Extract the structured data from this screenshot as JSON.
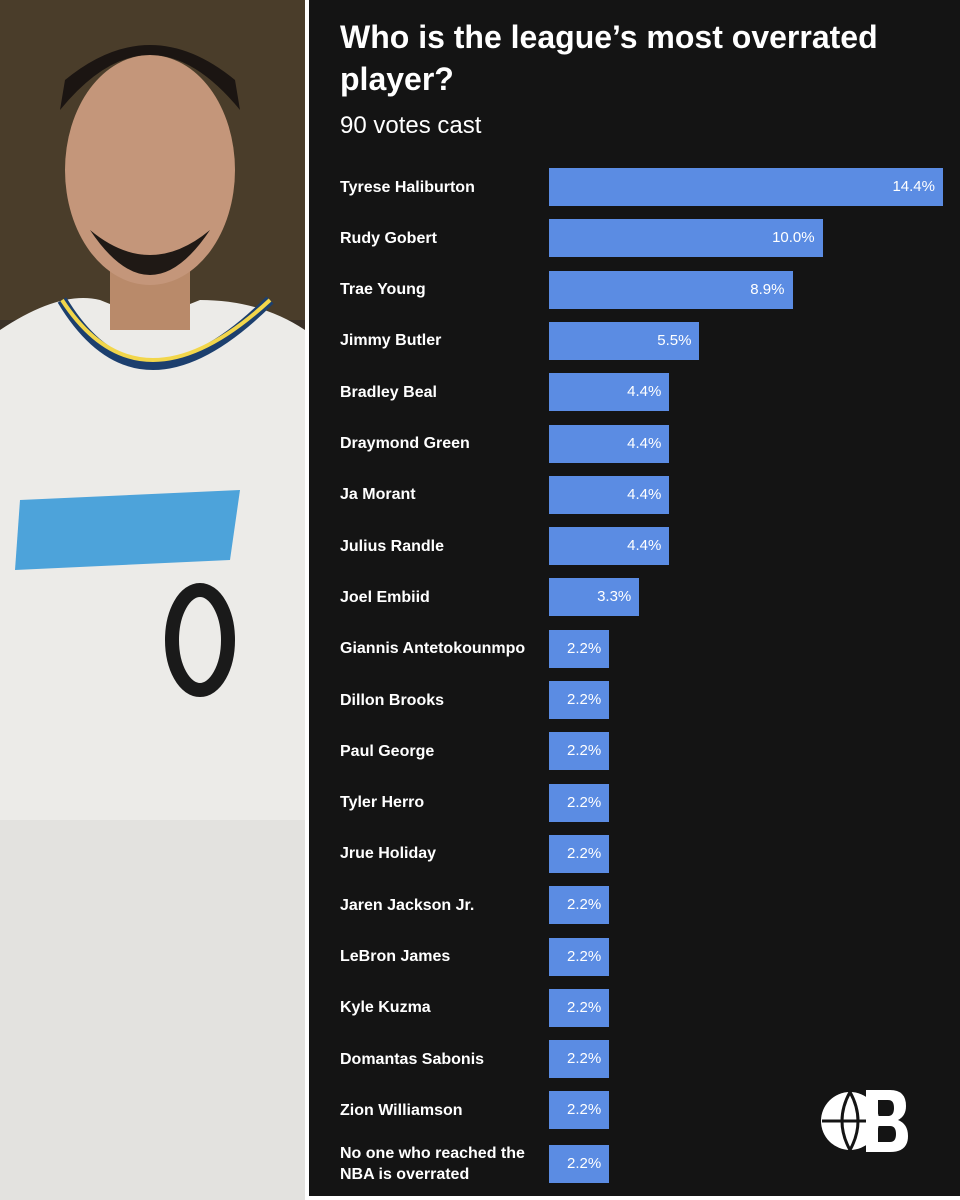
{
  "chart_data": {
    "type": "bar",
    "orientation": "horizontal",
    "title": "Who is the league’s most overrated player?",
    "subtitle": "90 votes cast",
    "color": "#5b8ce3",
    "categories": [
      "Tyrese Haliburton",
      "Rudy Gobert",
      "Trae Young",
      "Jimmy Butler",
      "Bradley Beal",
      "Draymond Green",
      "Ja Morant",
      "Julius Randle",
      "Joel Embiid",
      "Giannis Antetokounmpo",
      "Dillon Brooks",
      "Paul George",
      "Tyler Herro",
      "Jrue Holiday",
      "Jaren Jackson Jr.",
      "LeBron James",
      "Kyle Kuzma",
      "Domantas Sabonis",
      "Zion Williamson",
      "No one who reached the NBA is overrated"
    ],
    "values": [
      14.4,
      10.0,
      8.9,
      5.5,
      4.4,
      4.4,
      4.4,
      4.4,
      3.3,
      2.2,
      2.2,
      2.2,
      2.2,
      2.2,
      2.2,
      2.2,
      2.2,
      2.2,
      2.2,
      2.2
    ],
    "value_labels": [
      "14.4%",
      "10.0%",
      "8.9%",
      "5.5%",
      "4.4%",
      "4.4%",
      "4.4%",
      "4.4%",
      "3.3%",
      "2.2%",
      "2.2%",
      "2.2%",
      "2.2%",
      "2.2%",
      "2.2%",
      "2.2%",
      "2.2%",
      "2.2%",
      "2.2%",
      "2.2%"
    ]
  }
}
